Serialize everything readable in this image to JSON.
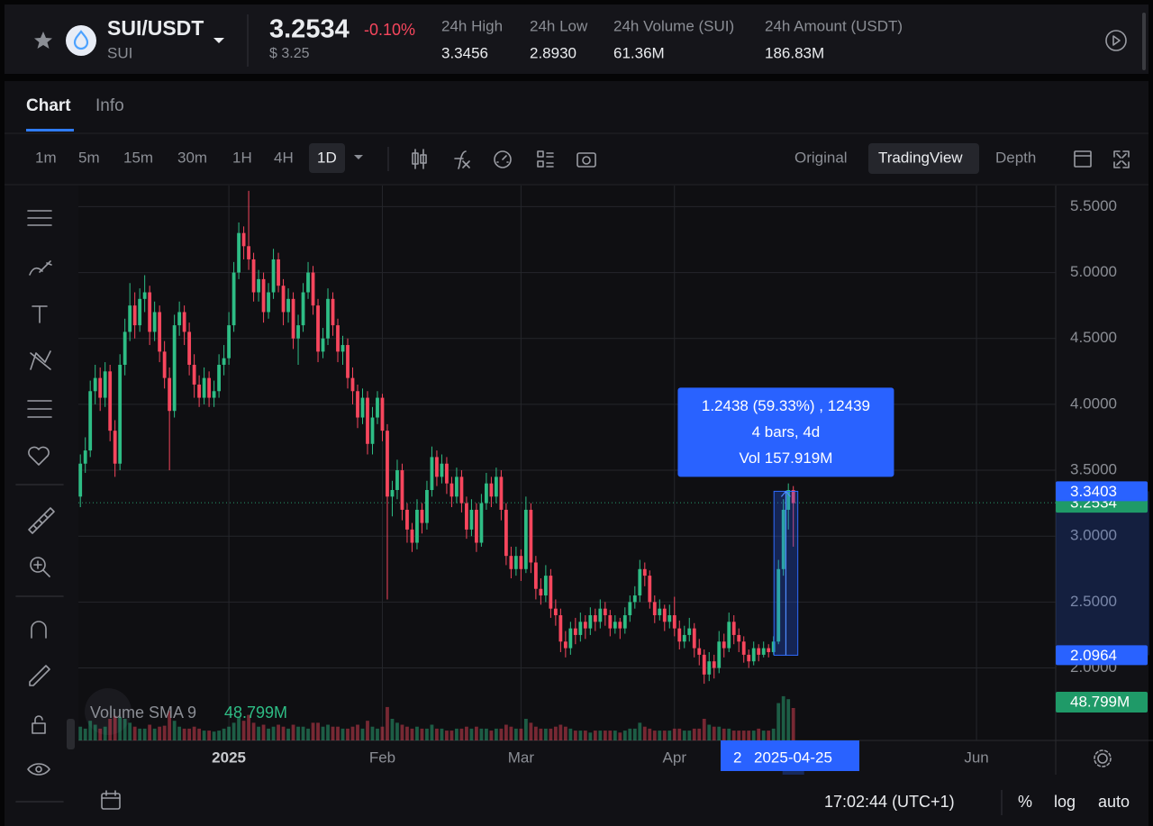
{
  "header": {
    "pair": "SUI/USDT",
    "base": "SUI",
    "price": "3.2534",
    "change": "-0.10%",
    "usd_price": "$ 3.25",
    "stats": [
      {
        "label": "24h High",
        "value": "3.3456"
      },
      {
        "label": "24h Low",
        "value": "2.8930"
      },
      {
        "label": "24h Volume (SUI)",
        "value": "61.36M"
      },
      {
        "label": "24h Amount (USDT)",
        "value": "186.83M"
      }
    ]
  },
  "tabs": [
    "Chart",
    "Info"
  ],
  "intervals": [
    "1m",
    "5m",
    "15m",
    "30m",
    "1H",
    "4H",
    "1D"
  ],
  "views": [
    "Original",
    "TradingView",
    "Depth"
  ],
  "chart": {
    "type": "candlestick",
    "up_color": "#2ebd85",
    "down_color": "#f6465d",
    "xlim": [
      -0.4,
      197
    ],
    "xticks": [
      {
        "value": 30,
        "label": "2025"
      },
      {
        "value": 61,
        "label": "Feb"
      },
      {
        "value": 89,
        "label": "Mar"
      },
      {
        "value": 120,
        "label": "Apr"
      },
      {
        "value": 181,
        "label": "Jun"
      }
    ],
    "ylim": [
      1.45,
      5.66
    ],
    "yticks": [
      {
        "value": 2.0,
        "label": "2.0000"
      },
      {
        "value": 2.5,
        "label": "2.5000"
      },
      {
        "value": 3.0,
        "label": "3.0000"
      },
      {
        "value": 3.5,
        "label": "3.5000"
      },
      {
        "value": 4.0,
        "label": "4.0000"
      },
      {
        "value": 4.5,
        "label": "4.5000"
      },
      {
        "value": 5.0,
        "label": "5.0000"
      },
      {
        "value": 5.5,
        "label": "5.5000"
      }
    ],
    "grid": true,
    "candles": [
      [
        3.3,
        3.62,
        3.22,
        3.55
      ],
      [
        3.55,
        3.75,
        3.48,
        3.65
      ],
      [
        3.65,
        4.18,
        3.6,
        4.1
      ],
      [
        4.1,
        4.3,
        4.0,
        4.2
      ],
      [
        4.2,
        4.28,
        3.95,
        4.05
      ],
      [
        4.05,
        4.32,
        3.98,
        4.25
      ],
      [
        4.25,
        4.3,
        3.72,
        3.8
      ],
      [
        3.8,
        3.88,
        3.45,
        3.55
      ],
      [
        3.55,
        4.38,
        3.5,
        4.3
      ],
      [
        4.3,
        4.65,
        4.22,
        4.55
      ],
      [
        4.55,
        4.92,
        4.48,
        4.75
      ],
      [
        4.75,
        4.85,
        4.5,
        4.6
      ],
      [
        4.6,
        4.88,
        4.55,
        4.8
      ],
      [
        4.8,
        4.98,
        4.7,
        4.85
      ],
      [
        4.85,
        4.9,
        4.45,
        4.55
      ],
      [
        4.55,
        4.78,
        4.48,
        4.7
      ],
      [
        4.7,
        4.75,
        4.32,
        4.4
      ],
      [
        4.4,
        4.48,
        4.12,
        4.2
      ],
      [
        4.2,
        4.28,
        3.5,
        3.95
      ],
      [
        3.95,
        4.68,
        3.9,
        4.6
      ],
      [
        4.6,
        4.78,
        4.52,
        4.7
      ],
      [
        4.7,
        4.75,
        4.45,
        4.55
      ],
      [
        4.55,
        4.62,
        4.22,
        4.3
      ],
      [
        4.3,
        4.38,
        4.05,
        4.15
      ],
      [
        4.15,
        4.22,
        3.98,
        4.05
      ],
      [
        4.05,
        4.28,
        4.0,
        4.2
      ],
      [
        4.2,
        4.25,
        3.98,
        4.05
      ],
      [
        4.05,
        4.18,
        3.98,
        4.1
      ],
      [
        4.1,
        4.38,
        4.05,
        4.3
      ],
      [
        4.3,
        4.45,
        4.22,
        4.35
      ],
      [
        4.35,
        4.7,
        4.3,
        4.6
      ],
      [
        4.6,
        5.08,
        4.55,
        5.0
      ],
      [
        5.0,
        5.38,
        4.95,
        5.3
      ],
      [
        5.3,
        5.35,
        5.1,
        5.2
      ],
      [
        5.2,
        5.62,
        5.02,
        5.1
      ],
      [
        5.1,
        5.15,
        4.78,
        4.85
      ],
      [
        4.85,
        5.02,
        4.78,
        4.95
      ],
      [
        4.95,
        5.0,
        4.62,
        4.7
      ],
      [
        4.7,
        4.92,
        4.65,
        4.85
      ],
      [
        4.85,
        5.18,
        4.8,
        5.1
      ],
      [
        5.1,
        5.15,
        4.85,
        4.9
      ],
      [
        4.9,
        4.95,
        4.6,
        4.7
      ],
      [
        4.7,
        4.88,
        4.62,
        4.8
      ],
      [
        4.8,
        4.85,
        4.42,
        4.5
      ],
      [
        4.5,
        4.68,
        4.3,
        4.6
      ],
      [
        4.6,
        4.92,
        4.55,
        4.85
      ],
      [
        4.85,
        5.08,
        4.8,
        5.0
      ],
      [
        5.0,
        5.05,
        4.68,
        4.75
      ],
      [
        4.75,
        4.8,
        4.32,
        4.4
      ],
      [
        4.4,
        4.58,
        4.35,
        4.5
      ],
      [
        4.5,
        4.88,
        4.45,
        4.8
      ],
      [
        4.8,
        4.85,
        4.52,
        4.6
      ],
      [
        4.6,
        4.65,
        4.32,
        4.4
      ],
      [
        4.4,
        4.52,
        4.3,
        4.45
      ],
      [
        4.45,
        4.5,
        4.12,
        4.2
      ],
      [
        4.2,
        4.28,
        4.0,
        4.1
      ],
      [
        4.1,
        4.15,
        3.82,
        3.9
      ],
      [
        3.9,
        4.12,
        3.85,
        4.05
      ],
      [
        4.05,
        4.1,
        3.62,
        3.7
      ],
      [
        3.7,
        3.98,
        3.62,
        3.9
      ],
      [
        3.9,
        4.1,
        3.85,
        4.05
      ],
      [
        4.05,
        4.08,
        3.72,
        3.8
      ],
      [
        3.8,
        3.85,
        2.52,
        3.3
      ],
      [
        3.3,
        3.42,
        3.15,
        3.35
      ],
      [
        3.35,
        3.58,
        3.28,
        3.5
      ],
      [
        3.5,
        3.55,
        3.12,
        3.2
      ],
      [
        3.2,
        3.25,
        2.95,
        3.05
      ],
      [
        3.05,
        3.1,
        2.88,
        2.95
      ],
      [
        2.95,
        3.28,
        2.9,
        3.2
      ],
      [
        3.2,
        3.25,
        3.02,
        3.1
      ],
      [
        3.1,
        3.42,
        3.05,
        3.35
      ],
      [
        3.35,
        3.68,
        3.3,
        3.6
      ],
      [
        3.6,
        3.65,
        3.38,
        3.45
      ],
      [
        3.45,
        3.62,
        3.4,
        3.55
      ],
      [
        3.55,
        3.6,
        3.32,
        3.4
      ],
      [
        3.4,
        3.45,
        3.22,
        3.3
      ],
      [
        3.3,
        3.52,
        3.25,
        3.45
      ],
      [
        3.45,
        3.5,
        3.18,
        3.25
      ],
      [
        3.25,
        3.3,
        2.98,
        3.05
      ],
      [
        3.05,
        3.28,
        3.0,
        3.2
      ],
      [
        3.2,
        3.25,
        2.88,
        2.95
      ],
      [
        2.95,
        3.32,
        2.92,
        3.25
      ],
      [
        3.25,
        3.48,
        3.2,
        3.4
      ],
      [
        3.4,
        3.45,
        3.22,
        3.3
      ],
      [
        3.3,
        3.52,
        3.25,
        3.45
      ],
      [
        3.45,
        3.5,
        3.12,
        3.2
      ],
      [
        3.2,
        3.25,
        2.78,
        2.85
      ],
      [
        2.85,
        2.92,
        2.68,
        2.75
      ],
      [
        2.75,
        2.92,
        2.7,
        2.85
      ],
      [
        2.85,
        2.9,
        2.66,
        2.75
      ],
      [
        2.75,
        3.3,
        2.72,
        3.2
      ],
      [
        3.2,
        3.25,
        2.72,
        2.8
      ],
      [
        2.8,
        2.85,
        2.52,
        2.6
      ],
      [
        2.6,
        2.68,
        2.48,
        2.55
      ],
      [
        2.55,
        2.78,
        2.5,
        2.7
      ],
      [
        2.7,
        2.75,
        2.38,
        2.45
      ],
      [
        2.45,
        2.52,
        2.32,
        2.4
      ],
      [
        2.4,
        2.45,
        2.12,
        2.2
      ],
      [
        2.2,
        2.28,
        2.08,
        2.15
      ],
      [
        2.15,
        2.35,
        2.1,
        2.3
      ],
      [
        2.3,
        2.38,
        2.18,
        2.25
      ],
      [
        2.25,
        2.42,
        2.2,
        2.35
      ],
      [
        2.35,
        2.4,
        2.22,
        2.3
      ],
      [
        2.3,
        2.46,
        2.25,
        2.4
      ],
      [
        2.4,
        2.45,
        2.28,
        2.35
      ],
      [
        2.35,
        2.52,
        2.3,
        2.45
      ],
      [
        2.45,
        2.5,
        2.32,
        2.4
      ],
      [
        2.4,
        2.44,
        2.24,
        2.3
      ],
      [
        2.3,
        2.4,
        2.26,
        2.35
      ],
      [
        2.35,
        2.38,
        2.22,
        2.3
      ],
      [
        2.3,
        2.46,
        2.26,
        2.4
      ],
      [
        2.4,
        2.55,
        2.35,
        2.5
      ],
      [
        2.5,
        2.62,
        2.45,
        2.55
      ],
      [
        2.55,
        2.82,
        2.5,
        2.75
      ],
      [
        2.75,
        2.8,
        2.62,
        2.7
      ],
      [
        2.7,
        2.74,
        2.45,
        2.5
      ],
      [
        2.5,
        2.55,
        2.34,
        2.4
      ],
      [
        2.4,
        2.52,
        2.36,
        2.45
      ],
      [
        2.45,
        2.48,
        2.28,
        2.35
      ],
      [
        2.35,
        2.48,
        2.3,
        2.4
      ],
      [
        2.4,
        2.54,
        2.24,
        2.3
      ],
      [
        2.3,
        2.36,
        2.14,
        2.2
      ],
      [
        2.2,
        2.32,
        2.15,
        2.25
      ],
      [
        2.25,
        2.38,
        2.2,
        2.3
      ],
      [
        2.3,
        2.34,
        2.08,
        2.15
      ],
      [
        2.15,
        2.22,
        2.02,
        2.1
      ],
      [
        2.1,
        2.14,
        1.88,
        1.95
      ],
      [
        1.95,
        2.12,
        1.9,
        2.05
      ],
      [
        2.05,
        2.1,
        1.92,
        2.0
      ],
      [
        2.0,
        2.28,
        1.96,
        2.2
      ],
      [
        2.2,
        2.26,
        2.08,
        2.15
      ],
      [
        2.15,
        2.42,
        2.12,
        2.35
      ],
      [
        2.35,
        2.4,
        2.18,
        2.25
      ],
      [
        2.25,
        2.3,
        2.12,
        2.2
      ],
      [
        2.2,
        2.24,
        2.04,
        2.1
      ],
      [
        2.1,
        2.14,
        2.0,
        2.05
      ],
      [
        2.05,
        2.2,
        2.02,
        2.15
      ],
      [
        2.15,
        2.18,
        2.05,
        2.1
      ],
      [
        2.1,
        2.2,
        2.08,
        2.15
      ],
      [
        2.15,
        2.18,
        2.08,
        2.12
      ],
      [
        2.12,
        2.24,
        2.1,
        2.2
      ],
      [
        2.2,
        2.82,
        2.18,
        2.75
      ],
      [
        2.75,
        3.28,
        2.7,
        3.2
      ],
      [
        3.2,
        3.4,
        3.05,
        3.35
      ],
      [
        3.35,
        3.38,
        2.92,
        3.25
      ]
    ],
    "volumes": [
      14,
      12,
      20,
      16,
      12,
      14,
      22,
      25,
      24,
      22,
      18,
      14,
      12,
      12,
      16,
      12,
      14,
      15,
      30,
      20,
      14,
      12,
      12,
      14,
      12,
      10,
      10,
      9,
      10,
      12,
      14,
      18,
      24,
      20,
      26,
      18,
      14,
      16,
      12,
      14,
      16,
      14,
      12,
      16,
      14,
      14,
      12,
      18,
      18,
      14,
      16,
      14,
      14,
      12,
      12,
      14,
      16,
      12,
      20,
      14,
      12,
      14,
      34,
      22,
      18,
      16,
      14,
      12,
      14,
      12,
      12,
      16,
      12,
      12,
      10,
      10,
      12,
      12,
      14,
      12,
      14,
      12,
      12,
      10,
      12,
      12,
      16,
      14,
      12,
      12,
      22,
      18,
      14,
      12,
      12,
      12,
      14,
      16,
      14,
      12,
      10,
      10,
      10,
      8,
      10,
      10,
      10,
      10,
      10,
      8,
      10,
      12,
      12,
      18,
      14,
      12,
      10,
      10,
      10,
      10,
      12,
      12,
      10,
      10,
      12,
      12,
      22,
      16,
      14,
      14,
      12,
      12,
      10,
      10,
      10,
      10,
      10,
      12,
      10,
      10,
      12,
      38,
      45,
      42,
      33
    ],
    "volume_lim": [
      0,
      110
    ],
    "last_price": 3.2534,
    "volume_legend": "Volume SMA 9",
    "volume_sma": "48.799M",
    "measure": {
      "first_bar": 141,
      "last_bar": 144,
      "low": 2.0964,
      "high": 3.3403,
      "lines": [
        "1.2438 (59.33%) , 12439",
        "4 bars, 4d",
        "Vol 157.919M"
      ]
    },
    "cursor_label": "2",
    "cursor_date": "2025-04-25"
  },
  "footer": {
    "time": "17:02:44 (UTC+1)",
    "options": [
      "%",
      "log",
      "auto"
    ]
  }
}
